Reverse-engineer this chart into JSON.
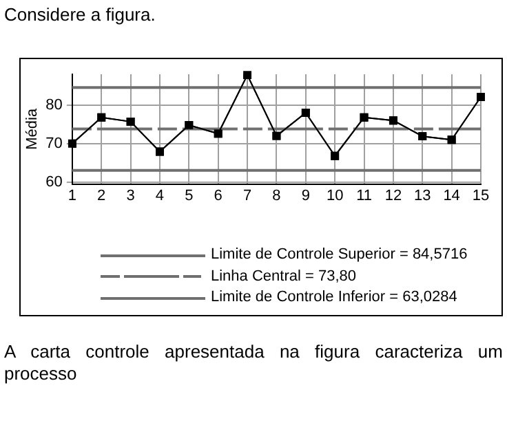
{
  "chart_data": {
    "type": "line",
    "title": "Considere a figura.",
    "ylabel": "Média",
    "x": [
      1,
      2,
      3,
      4,
      5,
      6,
      7,
      8,
      9,
      10,
      11,
      12,
      13,
      14,
      15
    ],
    "series": [
      {
        "color": "#000000",
        "values": [
          70,
          76.8,
          75.7,
          67.9,
          74.8,
          72.6,
          87.8,
          72,
          78,
          66.8,
          76.8,
          76,
          71.9,
          71,
          82.1
        ]
      }
    ],
    "xlim": [
      1,
      15
    ],
    "xticks": [
      1,
      2,
      3,
      4,
      5,
      6,
      7,
      8,
      9,
      10,
      11,
      12,
      13,
      14,
      15
    ],
    "ylim": [
      59.5,
      88
    ],
    "yticks": [
      60,
      70,
      80
    ],
    "ref_lines": [
      {
        "axis": "y",
        "value": 84.5716,
        "label": "Limite de Controle Superior = 84,5716",
        "color": "#707070",
        "line_style": "solid"
      },
      {
        "axis": "y",
        "value": 73.8,
        "label": "Linha Central = 73,80",
        "color": "#707070",
        "line_style": "dashed"
      },
      {
        "axis": "y",
        "value": 63.0284,
        "label": "Limite de Controle Inferior = 63,0284",
        "color": "#707070",
        "line_style": "solid"
      }
    ],
    "grid": true,
    "legend": "bottom",
    "marker": "square",
    "line_style": "solid",
    "annotations": [
      "A carta controle apresentada na figura caracteriza um processo"
    ]
  }
}
